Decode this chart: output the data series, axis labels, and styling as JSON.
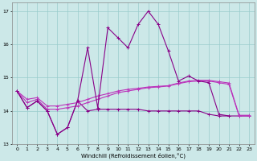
{
  "xlabel": "Windchill (Refroidissement éolien,°C)",
  "x": [
    0,
    1,
    2,
    3,
    4,
    5,
    6,
    7,
    8,
    9,
    10,
    11,
    12,
    13,
    14,
    15,
    16,
    17,
    18,
    19,
    20,
    21,
    22,
    23
  ],
  "line_spiky": [
    14.6,
    14.1,
    14.3,
    14.0,
    13.3,
    13.5,
    14.3,
    15.9,
    14.1,
    16.5,
    16.2,
    15.9,
    16.6,
    17.0,
    16.6,
    15.8,
    14.9,
    15.05,
    14.9,
    14.85,
    13.9,
    13.85,
    null,
    null
  ],
  "line_flat": [
    14.6,
    14.1,
    14.3,
    14.0,
    13.3,
    13.5,
    14.3,
    14.0,
    14.05,
    14.05,
    14.05,
    14.05,
    14.05,
    14.0,
    14.0,
    14.0,
    14.0,
    14.0,
    14.0,
    13.9,
    13.85,
    13.85,
    13.85,
    13.85
  ],
  "line_rise1": [
    14.6,
    14.25,
    14.35,
    14.05,
    14.05,
    14.1,
    14.15,
    14.25,
    14.35,
    14.45,
    14.55,
    14.6,
    14.65,
    14.7,
    14.72,
    14.75,
    14.82,
    14.88,
    14.9,
    14.9,
    14.85,
    14.8,
    13.85,
    13.85
  ],
  "line_rise2": [
    14.6,
    14.35,
    14.4,
    14.15,
    14.15,
    14.2,
    14.25,
    14.35,
    14.45,
    14.52,
    14.6,
    14.65,
    14.68,
    14.72,
    14.74,
    14.76,
    14.84,
    14.9,
    14.92,
    14.92,
    14.88,
    14.84,
    13.87,
    13.87
  ],
  "color_dark": "#880088",
  "color_light": "#bb33bb",
  "ylim": [
    13.0,
    17.25
  ],
  "xlim": [
    -0.5,
    23.5
  ],
  "bg_color": "#cce8e8",
  "grid_color": "#99cccc",
  "yticks": [
    13,
    14,
    15,
    16,
    17
  ],
  "xticks": [
    0,
    1,
    2,
    3,
    4,
    5,
    6,
    7,
    8,
    9,
    10,
    11,
    12,
    13,
    14,
    15,
    16,
    17,
    18,
    19,
    20,
    21,
    22,
    23
  ]
}
